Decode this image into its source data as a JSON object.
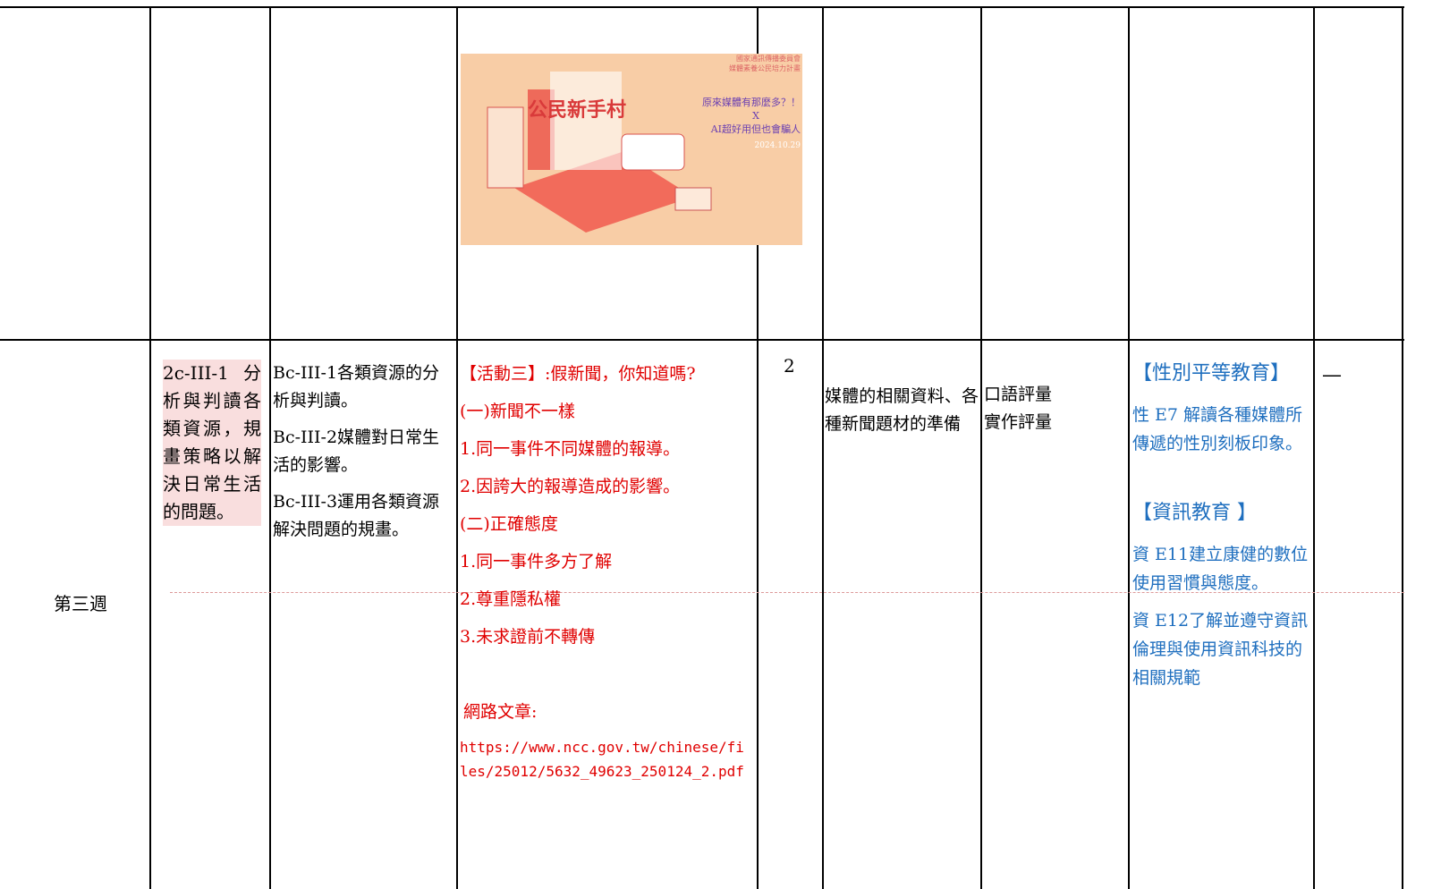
{
  "poster": {
    "org": "國家通訊傳播委員會",
    "program": "媒體素養公民培力計畫",
    "headline": "原來媒體有那麼多？！",
    "cross": "X",
    "subline": "AI超好用但也會騙人",
    "date": "2024.10.29",
    "brand": "公民新手村"
  },
  "week_row": {
    "week": "第三週",
    "performance": "2c-III-1分析與判讀各類資源，規畫策略以解決日常生活的問題。",
    "content": [
      "Bc-III-1各類資源的分析與判讀。",
      "Bc-III-2媒體對日常生活的影響。",
      "Bc-III-3運用各類資源解決問題的規畫。"
    ],
    "activity": {
      "title": "【活動三】:假新聞，你知道嗎?",
      "steps": [
        "(一)新聞不一樣",
        "1.同一事件不同媒體的報導。",
        "2.因誇大的報導造成的影響。",
        "(二)正確態度",
        "1.同一事件多方了解",
        "2.尊重隱私權",
        "3.未求證前不轉傳"
      ],
      "ref_label": "網路文章:",
      "ref_url": "https://www.ncc.gov.tw/chinese/files/25012/5632_49623_250124_2.pdf"
    },
    "periods": 2,
    "materials": "媒體的相關資料、各種新聞題材的準備",
    "assessment": [
      "口語評量",
      "實作評量"
    ],
    "issues": [
      "【性別平等教育】",
      "性 E7 解讀各種媒體所傳遞的性別刻板印象。",
      "【資訊教育 】",
      "資 E11建立康健的數位使用習慣與態度。",
      "資 E12了解並遵守資訊倫理與使用資訊科技的相關規範"
    ],
    "remark": "—"
  }
}
